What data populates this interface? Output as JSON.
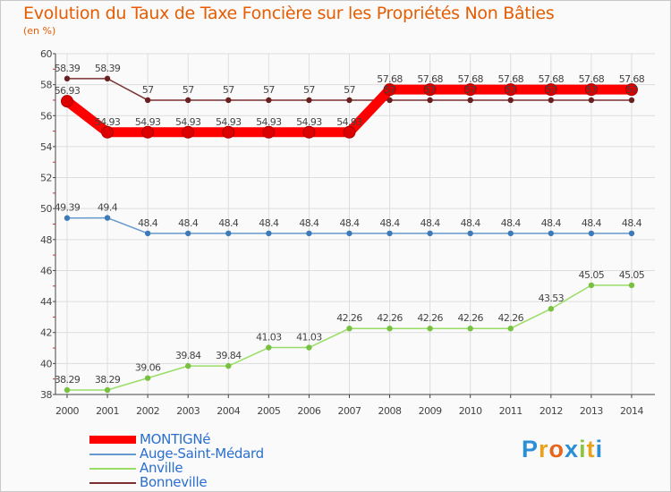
{
  "chart_data": {
    "type": "line",
    "title": "Evolution du Taux de Taxe Foncière sur les Propriétés Non Bâties",
    "ylabel": "(en %)",
    "xlabel": "",
    "ylim": [
      38,
      60
    ],
    "yticks": [
      38,
      40,
      42,
      44,
      46,
      48,
      50,
      52,
      54,
      56,
      58,
      60
    ],
    "grid": true,
    "legend_position": "bottom-left",
    "categories": [
      "2000",
      "2001",
      "2002",
      "2003",
      "2004",
      "2005",
      "2006",
      "2007",
      "2008",
      "2009",
      "2010",
      "2011",
      "2012",
      "2013",
      "2014"
    ],
    "series": [
      {
        "name": "MONTIGNé",
        "color": "#ff0000",
        "marker_color": "#cc0000",
        "thick": true,
        "values": [
          56.93,
          54.93,
          54.93,
          54.93,
          54.93,
          54.93,
          54.93,
          54.93,
          57.68,
          57.68,
          57.68,
          57.68,
          57.68,
          57.68,
          57.68
        ],
        "labels": [
          "56.93",
          "54.93",
          "54.93",
          "54.93",
          "54.93",
          "54.93",
          "54.93",
          "54.93",
          "57.68",
          "57.68",
          "57.68",
          "57.68",
          "57.68",
          "57.68",
          "57.68"
        ]
      },
      {
        "name": "Auge-Saint-Médard",
        "color": "#6699cc",
        "marker_color": "#3d7ab8",
        "thick": false,
        "values": [
          49.39,
          49.4,
          48.4,
          48.4,
          48.4,
          48.4,
          48.4,
          48.4,
          48.4,
          48.4,
          48.4,
          48.4,
          48.4,
          48.4,
          48.4
        ],
        "labels": [
          "49.39",
          "49.4",
          "48.4",
          "48.4",
          "48.4",
          "48.4",
          "48.4",
          "48.4",
          "48.4",
          "48.4",
          "48.4",
          "48.4",
          "48.4",
          "48.4",
          "48.4"
        ]
      },
      {
        "name": "Anville",
        "color": "#99dd66",
        "marker_color": "#77c040",
        "thick": false,
        "values": [
          38.29,
          38.29,
          39.06,
          39.84,
          39.84,
          41.03,
          41.03,
          42.26,
          42.26,
          42.26,
          42.26,
          42.26,
          43.53,
          45.05,
          45.05
        ],
        "labels": [
          "38.29",
          "38.29",
          "39.06",
          "39.84",
          "39.84",
          "41.03",
          "41.03",
          "42.26",
          "42.26",
          "42.26",
          "42.26",
          "42.26",
          "43.53",
          "45.05",
          "45.05"
        ]
      },
      {
        "name": "Bonneville",
        "color": "#7a3030",
        "marker_color": "#6a2020",
        "thick": false,
        "values": [
          58.39,
          58.39,
          57,
          57,
          57,
          57,
          57,
          57,
          57,
          57,
          57,
          57,
          57,
          57,
          57
        ],
        "labels": [
          "58.39",
          "58.39",
          "57",
          "57",
          "57",
          "57",
          "57",
          "57",
          "57",
          "57",
          "57",
          "57",
          "57",
          "57",
          "57"
        ]
      }
    ]
  },
  "logo": {
    "letters": [
      "P",
      "r",
      "o",
      "x",
      "i",
      "t",
      "i"
    ],
    "colors": [
      "#2a8fd6",
      "#e8a21c",
      "#e8651c",
      "#2a8fd6",
      "#8cc63f",
      "#e8a21c",
      "#2a8fd6"
    ]
  }
}
